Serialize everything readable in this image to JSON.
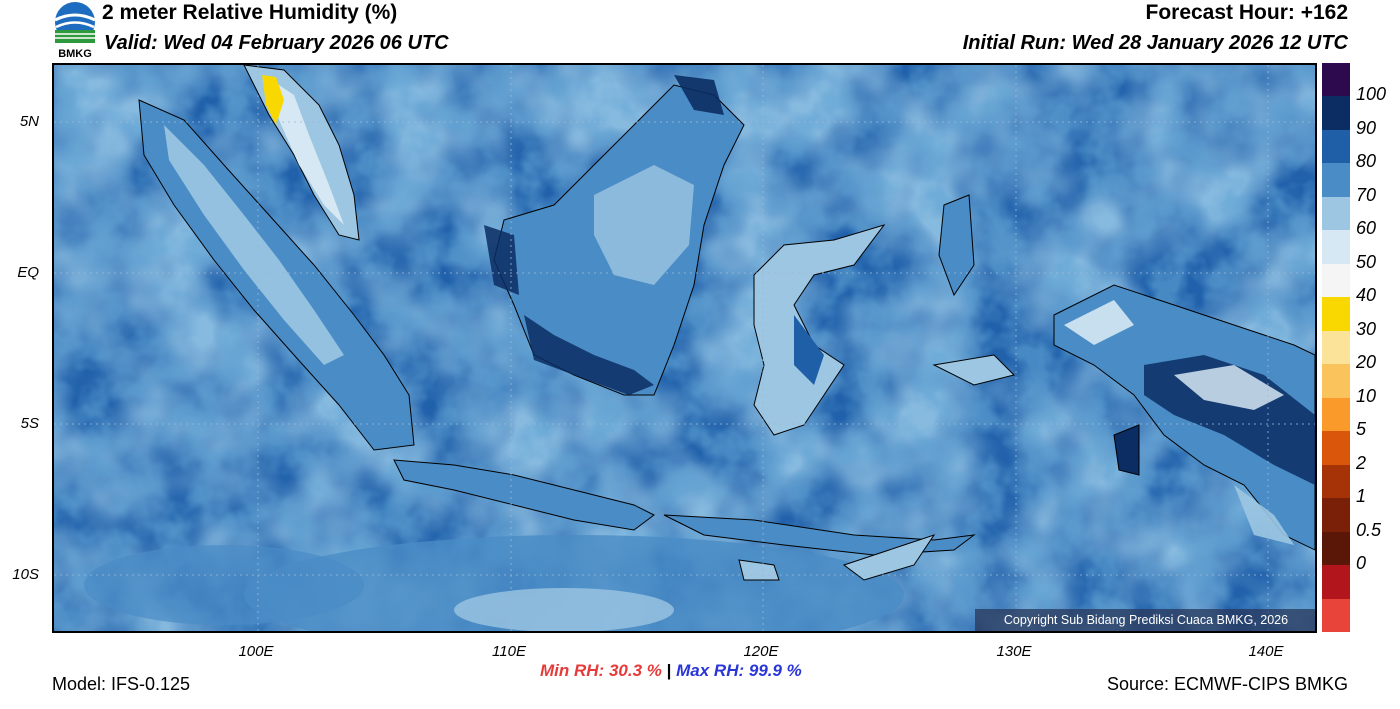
{
  "header": {
    "title": "2 meter Relative Humidity (%)",
    "valid": "Valid: Wed 04 February 2026 06 UTC",
    "forecast_hour": "Forecast Hour: +162",
    "initial_run": "Initial Run: Wed 28 January 2026 12 UTC",
    "logo_text": "BMKG"
  },
  "axes": {
    "y_ticks": [
      "5N",
      "EQ",
      "5S",
      "10S"
    ],
    "x_ticks": [
      "100E",
      "110E",
      "120E",
      "130E",
      "140E"
    ]
  },
  "colorbar": {
    "labels": [
      "100",
      "90",
      "80",
      "70",
      "60",
      "50",
      "40",
      "30",
      "20",
      "10",
      "5",
      "2",
      "1",
      "0.5",
      "0"
    ],
    "colors": [
      "#2d0a4e",
      "#0b2d63",
      "#1f5fa8",
      "#4a8cc6",
      "#9cc6e2",
      "#d6e8f3",
      "#f5f5f5",
      "#f8d800",
      "#fbe39a",
      "#fbc35b",
      "#f99a2a",
      "#d9560a",
      "#a63208",
      "#7a2008",
      "#5a1708",
      "#b2151b",
      "#e8443a"
    ]
  },
  "footer": {
    "model": "Model: IFS-0.125",
    "min_label": "Min RH:",
    "min_value": "30.3 %",
    "separator": "|",
    "max_label": "Max RH:",
    "max_value": "99.9 %",
    "source": "Source: ECMWF-CIPS BMKG",
    "copyright": "Copyright Sub Bidang Prediksi Cuaca BMKG, 2026"
  }
}
